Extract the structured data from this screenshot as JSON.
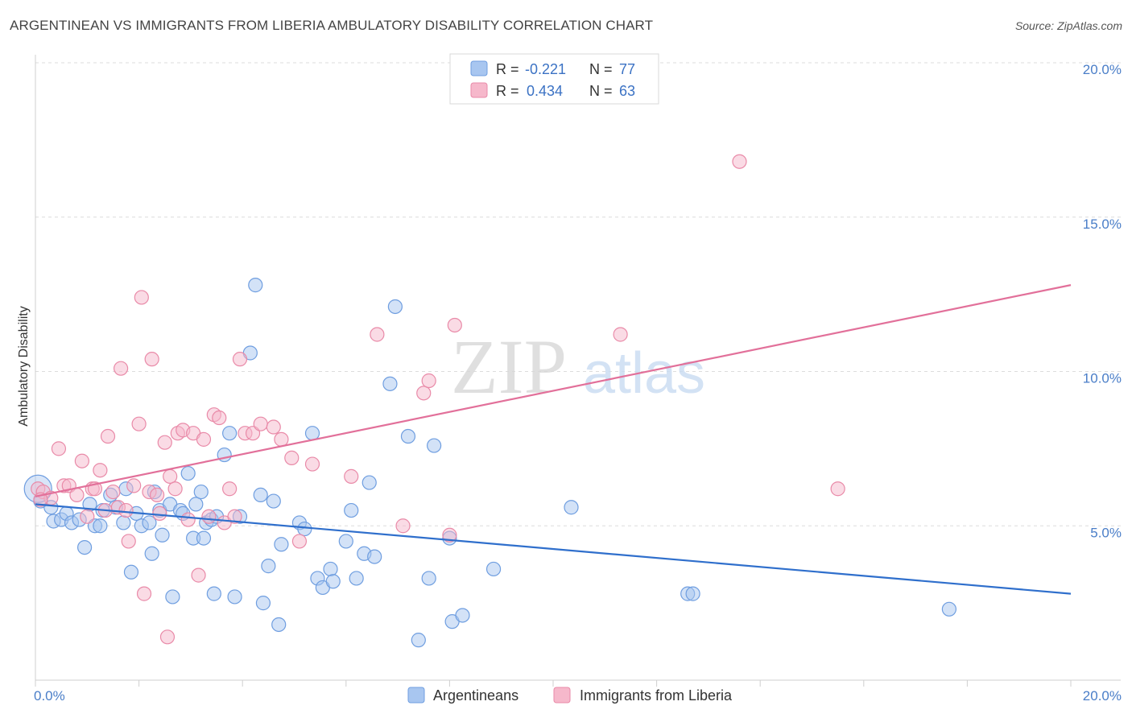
{
  "title": "ARGENTINEAN VS IMMIGRANTS FROM LIBERIA AMBULATORY DISABILITY CORRELATION CHART",
  "source": "Source: ZipAtlas.com",
  "watermark": {
    "zip": "ZIP",
    "atlas": "atlas"
  },
  "legend_top": [
    {
      "r_label": "R =",
      "r_value": "-0.221",
      "n_label": "N =",
      "n_value": "77",
      "color": "#a8c6f0",
      "stroke": "#6f9ee0"
    },
    {
      "r_label": "R =",
      "r_value": "0.434",
      "n_label": "N =",
      "n_value": "63",
      "color": "#f6b8cb",
      "stroke": "#e98aa8"
    }
  ],
  "legend_bottom": [
    {
      "label": "Argentineans",
      "color": "#a8c6f0",
      "stroke": "#6f9ee0"
    },
    {
      "label": "Immigrants from Liberia",
      "color": "#f6b8cb",
      "stroke": "#e98aa8"
    }
  ],
  "chart_data": {
    "type": "scatter",
    "title": "ARGENTINEAN VS IMMIGRANTS FROM LIBERIA AMBULATORY DISABILITY CORRELATION CHART",
    "xlabel": "",
    "ylabel": "Ambulatory Disability",
    "xlim": [
      0,
      20
    ],
    "ylim": [
      0,
      20
    ],
    "x_tick_labels": [
      "0.0%",
      "20.0%"
    ],
    "y_ticks": [
      {
        "value": 5,
        "label": "5.0%"
      },
      {
        "value": 10,
        "label": "10.0%"
      },
      {
        "value": 15,
        "label": "15.0%"
      },
      {
        "value": 20,
        "label": "20.0%"
      }
    ],
    "grid": true,
    "legend_position": "top-center",
    "series": [
      {
        "name": "Argentineans",
        "color": "#6f9ee0",
        "fill": "#a8c6f0",
        "trend": {
          "x": [
            0,
            20
          ],
          "y": [
            5.7,
            2.8
          ]
        },
        "points": [
          [
            0.1,
            5.8
          ],
          [
            0.3,
            5.6
          ],
          [
            0.35,
            5.15
          ],
          [
            0.5,
            5.2
          ],
          [
            0.6,
            5.4
          ],
          [
            0.7,
            5.1
          ],
          [
            0.85,
            5.2
          ],
          [
            0.95,
            4.3
          ],
          [
            1.05,
            5.7
          ],
          [
            1.15,
            5.0
          ],
          [
            1.25,
            5.0
          ],
          [
            1.3,
            5.5
          ],
          [
            1.45,
            6.0
          ],
          [
            1.55,
            5.6
          ],
          [
            1.7,
            5.1
          ],
          [
            1.75,
            6.2
          ],
          [
            1.85,
            3.5
          ],
          [
            1.95,
            5.4
          ],
          [
            2.05,
            5.0
          ],
          [
            2.2,
            5.1
          ],
          [
            2.25,
            4.1
          ],
          [
            2.3,
            6.1
          ],
          [
            2.4,
            5.5
          ],
          [
            2.45,
            4.7
          ],
          [
            2.6,
            5.7
          ],
          [
            2.65,
            2.7
          ],
          [
            2.8,
            5.5
          ],
          [
            2.85,
            5.4
          ],
          [
            2.95,
            6.7
          ],
          [
            3.05,
            4.6
          ],
          [
            3.1,
            5.7
          ],
          [
            3.2,
            6.1
          ],
          [
            3.25,
            4.6
          ],
          [
            3.3,
            5.1
          ],
          [
            3.4,
            5.2
          ],
          [
            3.45,
            2.8
          ],
          [
            3.5,
            5.3
          ],
          [
            3.65,
            7.3
          ],
          [
            3.75,
            8.0
          ],
          [
            3.85,
            2.7
          ],
          [
            3.95,
            5.3
          ],
          [
            4.15,
            10.6
          ],
          [
            4.25,
            12.8
          ],
          [
            4.35,
            6.0
          ],
          [
            4.4,
            2.5
          ],
          [
            4.5,
            3.7
          ],
          [
            4.6,
            5.8
          ],
          [
            4.7,
            1.8
          ],
          [
            4.75,
            4.4
          ],
          [
            5.1,
            5.1
          ],
          [
            5.2,
            4.9
          ],
          [
            5.35,
            8.0
          ],
          [
            5.45,
            3.3
          ],
          [
            5.55,
            3.0
          ],
          [
            5.7,
            3.6
          ],
          [
            5.75,
            3.2
          ],
          [
            6.0,
            4.5
          ],
          [
            6.1,
            5.5
          ],
          [
            6.2,
            3.3
          ],
          [
            6.35,
            4.1
          ],
          [
            6.45,
            6.4
          ],
          [
            6.55,
            4.0
          ],
          [
            6.85,
            9.6
          ],
          [
            6.95,
            12.1
          ],
          [
            7.2,
            7.9
          ],
          [
            7.4,
            1.3
          ],
          [
            7.6,
            3.3
          ],
          [
            7.7,
            7.6
          ],
          [
            8.0,
            4.6
          ],
          [
            8.05,
            1.9
          ],
          [
            8.25,
            2.1
          ],
          [
            8.85,
            3.6
          ],
          [
            10.35,
            5.6
          ],
          [
            12.6,
            2.8
          ],
          [
            12.7,
            2.8
          ],
          [
            17.65,
            2.3
          ],
          [
            0.05,
            6.2
          ]
        ]
      },
      {
        "name": "Immigrants from Liberia",
        "color": "#e98aa8",
        "fill": "#f6b8cb",
        "trend": {
          "x": [
            0,
            20
          ],
          "y": [
            5.95,
            12.8
          ]
        },
        "points": [
          [
            0.05,
            6.2
          ],
          [
            0.15,
            6.1
          ],
          [
            0.3,
            5.9
          ],
          [
            0.45,
            7.5
          ],
          [
            0.55,
            6.3
          ],
          [
            0.65,
            6.3
          ],
          [
            0.8,
            6.0
          ],
          [
            0.9,
            7.1
          ],
          [
            1.0,
            5.3
          ],
          [
            1.1,
            6.2
          ],
          [
            1.15,
            6.2
          ],
          [
            1.25,
            6.8
          ],
          [
            1.35,
            5.5
          ],
          [
            1.4,
            7.9
          ],
          [
            1.5,
            6.1
          ],
          [
            1.6,
            5.6
          ],
          [
            1.65,
            10.1
          ],
          [
            1.75,
            5.5
          ],
          [
            1.8,
            4.5
          ],
          [
            1.9,
            6.3
          ],
          [
            2.0,
            8.3
          ],
          [
            2.05,
            12.4
          ],
          [
            2.1,
            2.8
          ],
          [
            2.2,
            6.1
          ],
          [
            2.25,
            10.4
          ],
          [
            2.35,
            6.0
          ],
          [
            2.4,
            5.4
          ],
          [
            2.5,
            7.7
          ],
          [
            2.55,
            1.4
          ],
          [
            2.6,
            6.6
          ],
          [
            2.7,
            6.2
          ],
          [
            2.75,
            8.0
          ],
          [
            2.85,
            8.1
          ],
          [
            2.95,
            5.2
          ],
          [
            3.05,
            8.0
          ],
          [
            3.15,
            3.4
          ],
          [
            3.25,
            7.8
          ],
          [
            3.35,
            5.3
          ],
          [
            3.45,
            8.6
          ],
          [
            3.55,
            8.5
          ],
          [
            3.65,
            5.1
          ],
          [
            3.75,
            6.2
          ],
          [
            3.85,
            5.3
          ],
          [
            3.95,
            10.4
          ],
          [
            4.05,
            8.0
          ],
          [
            4.2,
            8.0
          ],
          [
            4.35,
            8.3
          ],
          [
            4.6,
            8.2
          ],
          [
            4.75,
            7.8
          ],
          [
            4.95,
            7.2
          ],
          [
            5.1,
            4.5
          ],
          [
            5.35,
            7.0
          ],
          [
            6.1,
            6.6
          ],
          [
            6.6,
            11.2
          ],
          [
            7.1,
            5.0
          ],
          [
            7.5,
            9.3
          ],
          [
            7.6,
            9.7
          ],
          [
            8.0,
            4.7
          ],
          [
            8.1,
            11.5
          ],
          [
            11.3,
            11.2
          ],
          [
            13.6,
            16.8
          ],
          [
            15.5,
            6.2
          ],
          [
            0.1,
            5.85
          ]
        ]
      }
    ]
  }
}
